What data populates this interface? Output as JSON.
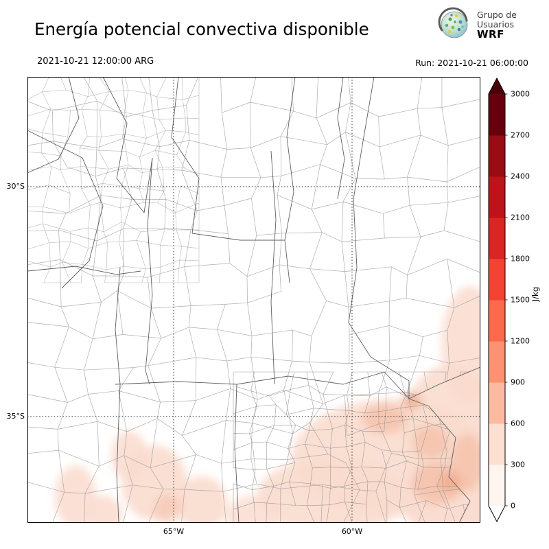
{
  "header": {
    "title": "Energía potencial convectiva disponible",
    "valid_time": "2021-10-21 12:00:00 ARG",
    "run_label": "Run: 2021-10-21 06:00:00",
    "logo": {
      "line1": "Grupo de",
      "line2": "Usuarios",
      "line3": "WRF"
    }
  },
  "map": {
    "lat_labels": [
      "30°S",
      "35°S"
    ],
    "lon_labels": [
      "65°W",
      "60°W"
    ]
  },
  "colorbar": {
    "unit": "J/kg",
    "ticks": [
      0,
      300,
      600,
      900,
      1200,
      1500,
      1800,
      2100,
      2400,
      2700,
      3000
    ],
    "colors": [
      "#fff5f0",
      "#fee0d2",
      "#fcbba1",
      "#fc9272",
      "#fb6a4a",
      "#f14432",
      "#d92523",
      "#bc141a",
      "#980c13",
      "#67000d"
    ],
    "over_color": "#49000a",
    "under_color": "#ffffff"
  },
  "chart_data": {
    "type": "heatmap",
    "title": "Energía potencial convectiva disponible",
    "variable": "CAPE (convective available potential energy)",
    "units": "J/kg",
    "valid_time": "2021-10-21 12:00:00 ARG",
    "run_time": "2021-10-21 06:00:00",
    "model": "WRF (Grupo de Usuarios WRF)",
    "colorbar_levels": [
      0,
      300,
      600,
      900,
      1200,
      1500,
      1800,
      2100,
      2400,
      2700,
      3000
    ],
    "colorbar_colors": [
      "#fff5f0",
      "#fee0d2",
      "#fcbba1",
      "#fc9272",
      "#fb6a4a",
      "#f14432",
      "#d92523",
      "#bc141a",
      "#980c13",
      "#67000d"
    ],
    "lat_gridlines": [
      "30°S",
      "35°S"
    ],
    "lon_gridlines": [
      "65°W",
      "60°W"
    ],
    "field_summary": [
      {
        "region": "southeast of domain (southern and eastern Buenos Aires province and adjacent Atlantic coast)",
        "approx_values_J_per_kg": "100-600"
      },
      {
        "region": "right edge near 33-34S (Rio de la Plata / Uruguay)",
        "approx_values_J_per_kg": "100-300"
      },
      {
        "region": "scattered patches in the south-southwest near 36-37S, 65-68W",
        "approx_values_J_per_kg": "100-300"
      },
      {
        "region": "remainder of domain",
        "approx_values_J_per_kg": "0"
      }
    ]
  }
}
